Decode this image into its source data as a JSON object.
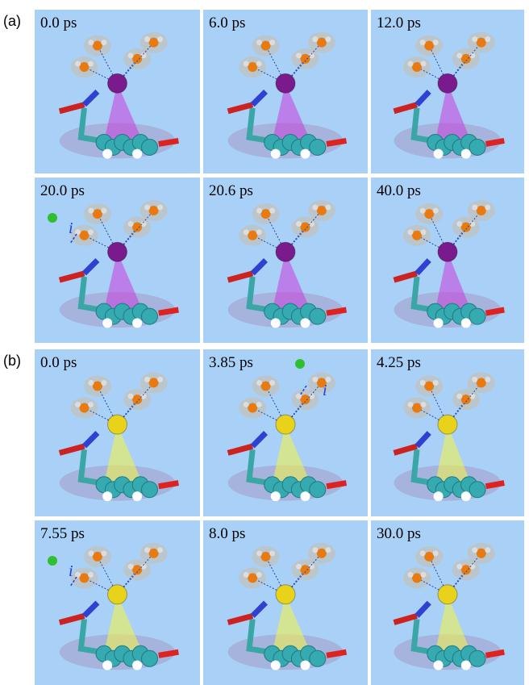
{
  "panels": [
    {
      "label": "(a)",
      "frames": [
        {
          "time": "0.0 ps"
        },
        {
          "time": "6.0 ps"
        },
        {
          "time": "12.0 ps"
        },
        {
          "time": "20.0 ps",
          "marker": "i"
        },
        {
          "time": "20.6 ps"
        },
        {
          "time": "40.0 ps"
        }
      ]
    },
    {
      "label": "(b)",
      "frames": [
        {
          "time": "0.0 ps"
        },
        {
          "time": "3.85 ps",
          "marker": "i"
        },
        {
          "time": "4.25 ps"
        },
        {
          "time": "7.55 ps",
          "marker": "i"
        },
        {
          "time": "8.0 ps"
        },
        {
          "time": "30.0 ps"
        }
      ]
    }
  ]
}
